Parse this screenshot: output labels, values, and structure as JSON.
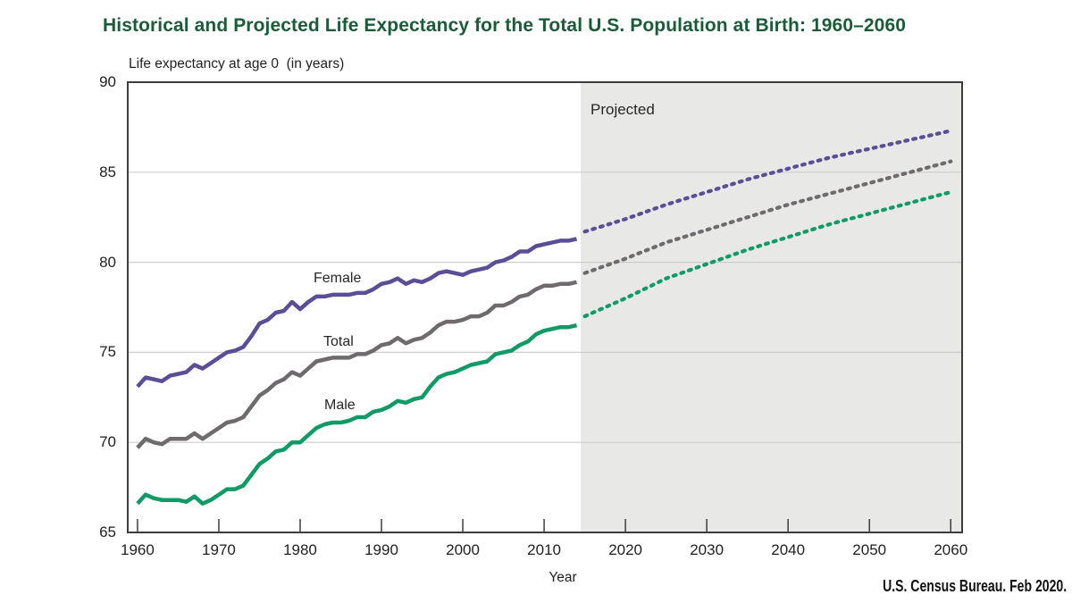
{
  "chart_data": {
    "type": "line",
    "title": "Historical and Projected Life Expectancy for the Total U.S. Population at Birth: 1960–2060",
    "ylabel": "Life expectancy at age 0  (in years)",
    "xlabel": "Year",
    "source": "U.S. Census Bureau. Feb 2020.",
    "projected_label": "Projected",
    "projected_region_start": 2014.5,
    "legend_position": "inline-labels",
    "grid": "horizontal",
    "x_axis": {
      "min": 1958.8,
      "max": 2061.4,
      "ticks": [
        1960,
        1970,
        1980,
        1990,
        2000,
        2010,
        2020,
        2030,
        2040,
        2050,
        2060
      ]
    },
    "y_axis": {
      "min": 65,
      "max": 90,
      "ticks": [
        65,
        70,
        75,
        80,
        85,
        90
      ]
    },
    "colors": {
      "title": "#1b5c38",
      "projected_region": "#e8e8e6",
      "gridline": "#cccccc",
      "axis": "#3d3d3d",
      "text": "#1f1f1f"
    },
    "series": [
      {
        "name": "Female",
        "color": "#5b4e97",
        "label_pos": {
          "x": 351,
          "y": 303
        },
        "historical": {
          "start_year": 1960,
          "values": [
            73.1,
            73.6,
            73.5,
            73.4,
            73.7,
            73.8,
            73.9,
            74.3,
            74.1,
            74.4,
            74.7,
            75.0,
            75.1,
            75.3,
            75.9,
            76.6,
            76.8,
            77.2,
            77.3,
            77.8,
            77.4,
            77.8,
            78.1,
            78.1,
            78.2,
            78.2,
            78.2,
            78.3,
            78.3,
            78.5,
            78.8,
            78.9,
            79.1,
            78.8,
            79.0,
            78.9,
            79.1,
            79.4,
            79.5,
            79.4,
            79.3,
            79.5,
            79.6,
            79.7,
            80.0,
            80.1,
            80.3,
            80.6,
            80.6,
            80.9,
            81.0,
            81.1,
            81.2,
            81.2,
            81.3
          ]
        },
        "projected_anchors": {
          "years": [
            2015,
            2020,
            2025,
            2030,
            2035,
            2040,
            2045,
            2050,
            2055,
            2060
          ],
          "values": [
            81.7,
            82.4,
            83.2,
            83.9,
            84.6,
            85.2,
            85.8,
            86.3,
            86.8,
            87.3
          ]
        }
      },
      {
        "name": "Total",
        "color": "#6e6a6d",
        "label_pos": {
          "x": 362,
          "y": 374
        },
        "historical": {
          "start_year": 1960,
          "values": [
            69.7,
            70.2,
            70.0,
            69.9,
            70.2,
            70.2,
            70.2,
            70.5,
            70.2,
            70.5,
            70.8,
            71.1,
            71.2,
            71.4,
            72.0,
            72.6,
            72.9,
            73.3,
            73.5,
            73.9,
            73.7,
            74.1,
            74.5,
            74.6,
            74.7,
            74.7,
            74.7,
            74.9,
            74.9,
            75.1,
            75.4,
            75.5,
            75.8,
            75.5,
            75.7,
            75.8,
            76.1,
            76.5,
            76.7,
            76.7,
            76.8,
            77.0,
            77.0,
            77.2,
            77.6,
            77.6,
            77.8,
            78.1,
            78.2,
            78.5,
            78.7,
            78.7,
            78.8,
            78.8,
            78.9
          ]
        },
        "projected_anchors": {
          "years": [
            2015,
            2020,
            2025,
            2030,
            2035,
            2040,
            2045,
            2050,
            2055,
            2060
          ],
          "values": [
            79.4,
            80.2,
            81.1,
            81.8,
            82.5,
            83.2,
            83.8,
            84.4,
            85.0,
            85.6
          ]
        }
      },
      {
        "name": "Male",
        "color": "#109b66",
        "label_pos": {
          "x": 363,
          "y": 445
        },
        "historical": {
          "start_year": 1960,
          "values": [
            66.6,
            67.1,
            66.9,
            66.8,
            66.8,
            66.8,
            66.7,
            67.0,
            66.6,
            66.8,
            67.1,
            67.4,
            67.4,
            67.6,
            68.2,
            68.8,
            69.1,
            69.5,
            69.6,
            70.0,
            70.0,
            70.4,
            70.8,
            71.0,
            71.1,
            71.1,
            71.2,
            71.4,
            71.4,
            71.7,
            71.8,
            72.0,
            72.3,
            72.2,
            72.4,
            72.5,
            73.1,
            73.6,
            73.8,
            73.9,
            74.1,
            74.3,
            74.4,
            74.5,
            74.9,
            75.0,
            75.1,
            75.4,
            75.6,
            76.0,
            76.2,
            76.3,
            76.4,
            76.4,
            76.5
          ]
        },
        "projected_anchors": {
          "years": [
            2015,
            2020,
            2025,
            2030,
            2035,
            2040,
            2045,
            2050,
            2055,
            2060
          ],
          "values": [
            77.0,
            78.0,
            79.1,
            79.9,
            80.7,
            81.4,
            82.1,
            82.7,
            83.3,
            83.9
          ]
        }
      }
    ]
  }
}
